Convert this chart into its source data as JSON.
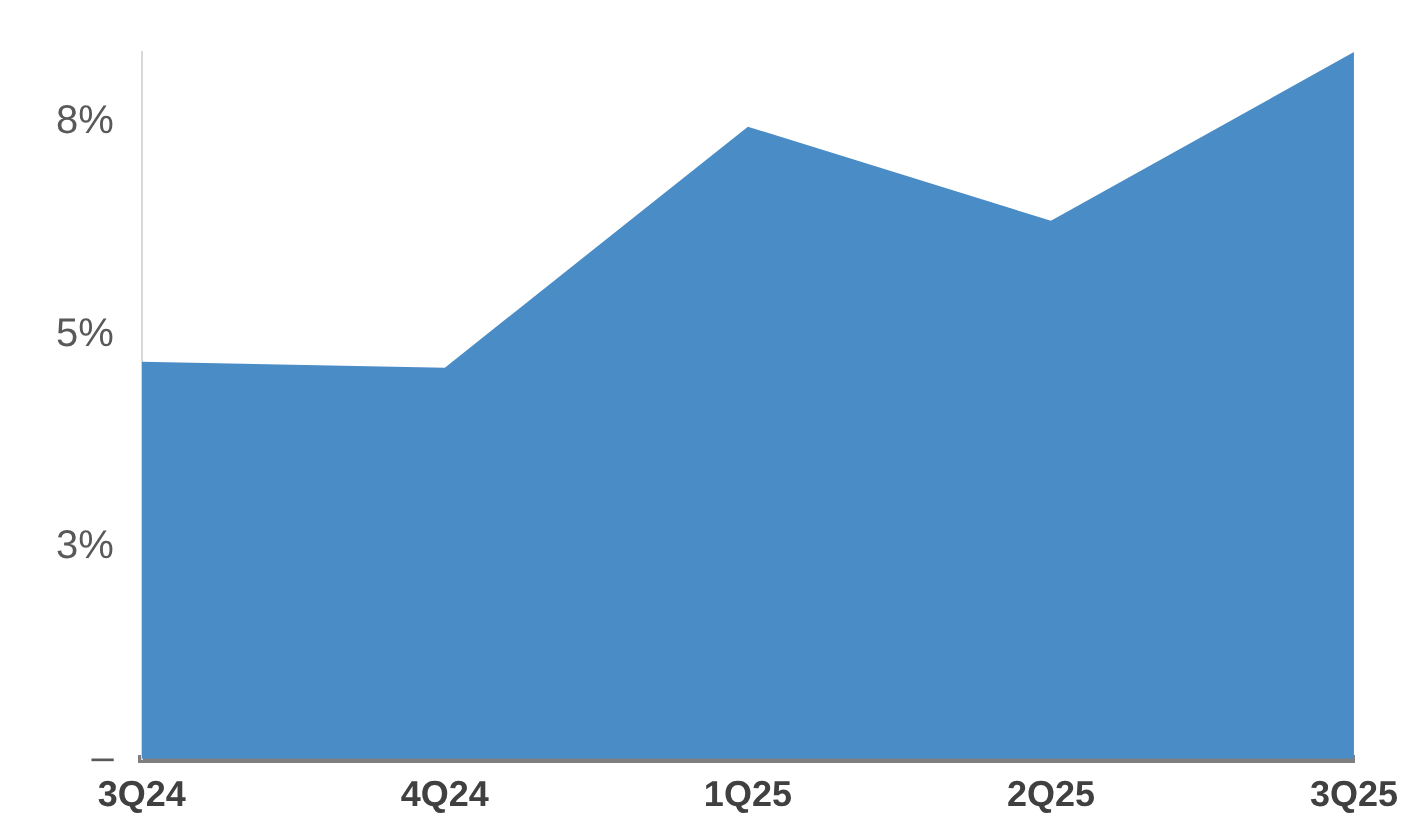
{
  "chart_data": {
    "type": "area",
    "categories": [
      "3Q24",
      "4Q24",
      "1Q25",
      "2Q25",
      "3Q25"
    ],
    "series": [
      {
        "color": "#4a8cc6",
        "values": [
          4.68,
          4.61,
          7.45,
          6.34,
          8.33
        ]
      }
    ],
    "yticks": [
      {
        "value": 0,
        "label": "–"
      },
      {
        "value": 2.5,
        "label": "3%"
      },
      {
        "value": 5,
        "label": "5%"
      },
      {
        "value": 7.5,
        "label": "8%"
      }
    ],
    "ylim": [
      0,
      8.33
    ],
    "grid": false,
    "legend": false
  }
}
